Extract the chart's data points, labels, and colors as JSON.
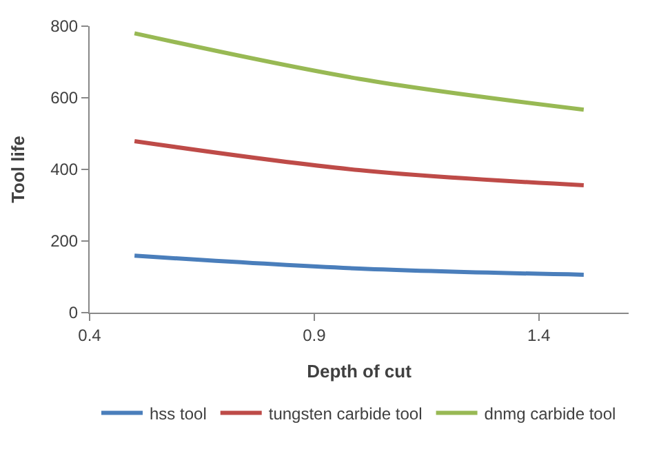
{
  "chart_data": {
    "type": "line",
    "xlabel": "Depth of cut",
    "ylabel": "Tool life",
    "x": [
      0.5,
      1.0,
      1.5
    ],
    "series": [
      {
        "name": "hss tool",
        "color": "#4a7ebb",
        "values": [
          159,
          123,
          106
        ]
      },
      {
        "name": "tungsten carbide tool",
        "color": "#be4b48",
        "values": [
          479,
          398,
          356
        ]
      },
      {
        "name": "dnmg carbide tool",
        "color": "#98b954",
        "values": [
          780,
          653,
          567
        ]
      }
    ],
    "xlim": [
      0.4,
      1.6
    ],
    "xticks": [
      0.4,
      0.9,
      1.4
    ],
    "ylim": [
      0,
      800
    ],
    "yticks": [
      0,
      200,
      400,
      600,
      800
    ],
    "grid": false,
    "legend": "bottom",
    "marker": "none",
    "line_style": "solid"
  }
}
